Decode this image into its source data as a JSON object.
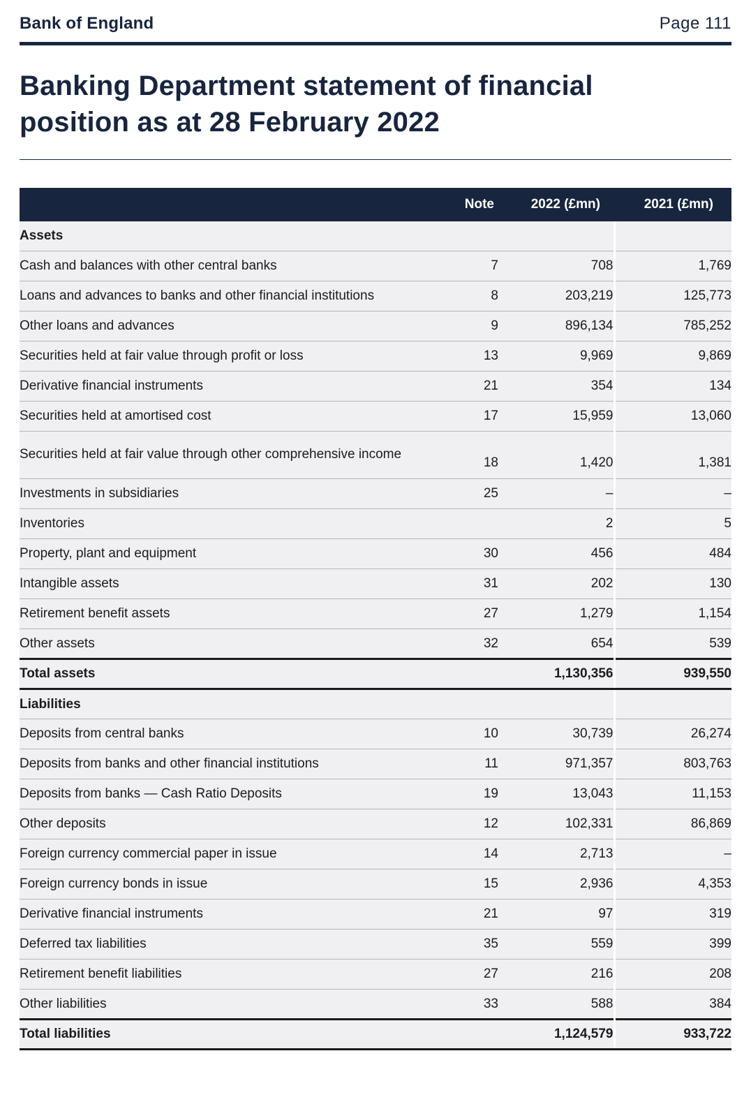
{
  "header": {
    "brand": "Bank of England",
    "page": "Page 111"
  },
  "title": "Banking Department statement of financial position as at 28 February 2022",
  "colors": {
    "navy": "#17253f",
    "row_bg": "#f0f0f2",
    "band_bg": "#dcdde0",
    "separator": "#b4b5b9",
    "total_border": "#1a1a1a"
  },
  "table": {
    "columns": [
      "Note",
      "2022 (£mn)",
      "2021 (£mn)"
    ],
    "rows": [
      {
        "type": "section",
        "label": "Assets",
        "note": "",
        "v2022": "",
        "v2021": ""
      },
      {
        "type": "item",
        "label": "Cash and balances with other central banks",
        "note": "7",
        "v2022": "708",
        "v2021": "1,769"
      },
      {
        "type": "item",
        "label": "Loans and advances to banks and other financial institutions",
        "note": "8",
        "v2022": "203,219",
        "v2021": "125,773"
      },
      {
        "type": "item",
        "label": "Other loans and advances",
        "note": "9",
        "v2022": "896,134",
        "v2021": "785,252"
      },
      {
        "type": "item",
        "label": "Securities held at fair value through profit or loss",
        "note": "13",
        "v2022": "9,969",
        "v2021": "9,869"
      },
      {
        "type": "item",
        "label": "Derivative financial instruments",
        "note": "21",
        "v2022": "354",
        "v2021": "134"
      },
      {
        "type": "item",
        "label": "Securities held at amortised cost",
        "note": "17",
        "v2022": "15,959",
        "v2021": "13,060"
      },
      {
        "type": "item",
        "tall": true,
        "label": "Securities held at fair value through other comprehensive income",
        "note": "18",
        "v2022": "1,420",
        "v2021": "1,381"
      },
      {
        "type": "item",
        "label": "Investments in subsidiaries",
        "note": "25",
        "v2022": "–",
        "v2021": "–"
      },
      {
        "type": "item",
        "label": "Inventories",
        "note": "",
        "v2022": "2",
        "v2021": "5"
      },
      {
        "type": "item",
        "label": "Property, plant and equipment",
        "note": "30",
        "v2022": "456",
        "v2021": "484"
      },
      {
        "type": "item",
        "label": "Intangible assets",
        "note": "31",
        "v2022": "202",
        "v2021": "130"
      },
      {
        "type": "item",
        "label": "Retirement benefit assets",
        "note": "27",
        "v2022": "1,279",
        "v2021": "1,154"
      },
      {
        "type": "item",
        "label": "Other assets",
        "note": "32",
        "v2022": "654",
        "v2021": "539"
      },
      {
        "type": "total",
        "label": "Total assets",
        "note": "",
        "v2022": "1,130,356",
        "v2021": "939,550"
      },
      {
        "type": "section",
        "label": "Liabilities",
        "note": "",
        "v2022": "",
        "v2021": ""
      },
      {
        "type": "item",
        "label": "Deposits from central banks",
        "note": "10",
        "v2022": "30,739",
        "v2021": "26,274"
      },
      {
        "type": "item",
        "label": "Deposits from banks and other financial institutions",
        "note": "11",
        "v2022": "971,357",
        "v2021": "803,763"
      },
      {
        "type": "item",
        "label": "Deposits from banks — Cash Ratio Deposits",
        "note": "19",
        "v2022": "13,043",
        "v2021": "11,153"
      },
      {
        "type": "item",
        "label": "Other deposits",
        "note": "12",
        "v2022": "102,331",
        "v2021": "86,869"
      },
      {
        "type": "item",
        "label": "Foreign currency commercial paper in issue",
        "note": "14",
        "v2022": "2,713",
        "v2021": "–"
      },
      {
        "type": "item",
        "label": "Foreign currency bonds in issue",
        "note": "15",
        "v2022": "2,936",
        "v2021": "4,353"
      },
      {
        "type": "item",
        "label": "Derivative financial instruments",
        "note": "21",
        "v2022": "97",
        "v2021": "319"
      },
      {
        "type": "item",
        "label": "Deferred tax liabilities",
        "note": "35",
        "v2022": "559",
        "v2021": "399"
      },
      {
        "type": "item",
        "label": "Retirement benefit liabilities",
        "note": "27",
        "v2022": "216",
        "v2021": "208"
      },
      {
        "type": "item",
        "label": "Other liabilities",
        "note": "33",
        "v2022": "588",
        "v2021": "384"
      },
      {
        "type": "total",
        "label": "Total liabilities",
        "note": "",
        "v2022": "1,124,579",
        "v2021": "933,722"
      }
    ]
  }
}
